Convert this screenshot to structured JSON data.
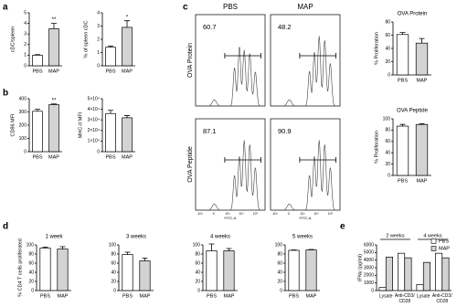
{
  "panel_letters": [
    "a",
    "b",
    "c",
    "d",
    "e"
  ],
  "chart_data": [
    {
      "type": "bar",
      "ylabel": "cDC/spleen",
      "categories": [
        "PBS",
        "MAP"
      ],
      "values": [
        1.0,
        3.5
      ],
      "errors": [
        0.05,
        0.5
      ],
      "colors": [
        "#ffffff",
        "#d3d3d3"
      ],
      "ylim": [
        0,
        5
      ],
      "yticks": [
        0,
        1,
        2,
        3,
        4,
        5
      ],
      "annotation": "**"
    },
    {
      "type": "bar",
      "ylabel": "% of spleen cDC",
      "categories": [
        "PBS",
        "MAP"
      ],
      "values": [
        1.4,
        2.9
      ],
      "errors": [
        0.1,
        0.5
      ],
      "colors": [
        "#ffffff",
        "#d3d3d3"
      ],
      "ylim": [
        0,
        4
      ],
      "yticks": [
        0,
        1,
        2,
        3,
        4
      ],
      "annotation": "*"
    },
    {
      "type": "bar",
      "ylabel": "CD86 MFI",
      "categories": [
        "PBS",
        "MAP"
      ],
      "values": [
        305,
        355
      ],
      "errors": [
        15,
        5
      ],
      "colors": [
        "#ffffff",
        "#d3d3d3"
      ],
      "ylim": [
        0,
        400
      ],
      "yticks": [
        0,
        100,
        200,
        300,
        400
      ],
      "annotation": "**"
    },
    {
      "type": "bar",
      "ylabel": "MHC-II MFI",
      "categories": [
        "PBS",
        "MAP"
      ],
      "values": [
        36000,
        32000
      ],
      "errors": [
        3000,
        2000
      ],
      "colors": [
        "#ffffff",
        "#d3d3d3"
      ],
      "ylim": [
        0,
        50000
      ],
      "yticks": [
        {
          "value": 0,
          "label": "0"
        },
        {
          "value": 10000,
          "label": "1×10⁴"
        },
        {
          "value": 20000,
          "label": "2×10⁴"
        },
        {
          "value": 30000,
          "label": "3×10⁴"
        },
        {
          "value": 40000,
          "label": "4×10⁴"
        },
        {
          "value": 50000,
          "label": "5×10⁴"
        }
      ]
    },
    {
      "type": "bar",
      "title": "OVA Protein",
      "ylabel": "% Proliferation",
      "categories": [
        "PBS",
        "MAP"
      ],
      "values": [
        61,
        48
      ],
      "errors": [
        3,
        7
      ],
      "colors": [
        "#ffffff",
        "#d3d3d3"
      ],
      "ylim": [
        0,
        80
      ],
      "yticks": [
        0,
        20,
        40,
        60,
        80
      ]
    },
    {
      "type": "bar",
      "title": "OVA Peptide",
      "ylabel": "% Proliferation",
      "categories": [
        "PBS",
        "MAP"
      ],
      "values": [
        87,
        90
      ],
      "errors": [
        3,
        1
      ],
      "colors": [
        "#ffffff",
        "#d3d3d3"
      ],
      "ylim": [
        0,
        100
      ],
      "yticks": [
        0,
        20,
        40,
        60,
        80,
        100
      ]
    },
    {
      "type": "bar",
      "title": "1 week",
      "ylabel": "% CD4 T cells proliferated",
      "categories": [
        "PBS",
        "MAP"
      ],
      "values": [
        93,
        91
      ],
      "errors": [
        2,
        5
      ],
      "colors": [
        "#ffffff",
        "#d3d3d3"
      ],
      "ylim": [
        0,
        100
      ],
      "yticks": [
        0,
        20,
        40,
        60,
        80,
        100
      ]
    },
    {
      "type": "bar",
      "title": "3 weeks",
      "categories": [
        "PBS",
        "MAP"
      ],
      "values": [
        79,
        65
      ],
      "errors": [
        5,
        6
      ],
      "colors": [
        "#ffffff",
        "#d3d3d3"
      ],
      "ylim": [
        0,
        100
      ],
      "yticks": [
        0,
        20,
        40,
        60,
        80,
        100
      ]
    },
    {
      "type": "bar",
      "title": "4 weeks",
      "categories": [
        "PBS",
        "MAP"
      ],
      "values": [
        87,
        87
      ],
      "errors": [
        15,
        5
      ],
      "colors": [
        "#ffffff",
        "#d3d3d3"
      ],
      "ylim": [
        0,
        100
      ],
      "yticks": [
        0,
        20,
        40,
        60,
        80,
        100
      ]
    },
    {
      "type": "bar",
      "title": "5 weeks",
      "categories": [
        "PBS",
        "MAP"
      ],
      "values": [
        88,
        89
      ],
      "errors": [
        1,
        1
      ],
      "colors": [
        "#ffffff",
        "#d3d3d3"
      ],
      "ylim": [
        0,
        100
      ],
      "yticks": [
        0,
        20,
        40,
        60,
        80,
        100
      ]
    },
    {
      "type": "grouped_bar",
      "ylabel": "IFNγ (pg/ml)",
      "categories": [
        "Lysate",
        "Anti-CD3/CD28",
        "Lysate",
        "Anti-CD3/CD28"
      ],
      "group_labels": [
        "2 weeks",
        "4 weeks"
      ],
      "series": [
        {
          "name": "PBS",
          "color": "#ffffff",
          "values": [
            400,
            4900,
            800,
            4900
          ]
        },
        {
          "name": "MAP",
          "color": "#d3d3d3",
          "values": [
            4400,
            4300,
            3700,
            4300
          ]
        }
      ],
      "ylim": [
        0,
        6000
      ],
      "yticks": [
        0,
        1000,
        2000,
        3000,
        4000,
        5000,
        6000
      ]
    }
  ],
  "flow": {
    "columns": [
      "PBS",
      "MAP"
    ],
    "rows": [
      {
        "label": "OVA Protein",
        "values": [
          60.7,
          48.2
        ]
      },
      {
        "label": "OVA Peptide",
        "values": [
          87.1,
          90.9
        ]
      }
    ],
    "xticks": [
      "-10³",
      "0",
      "10³",
      "10⁴",
      "10⁵"
    ],
    "xlabel": "FITC-A"
  }
}
